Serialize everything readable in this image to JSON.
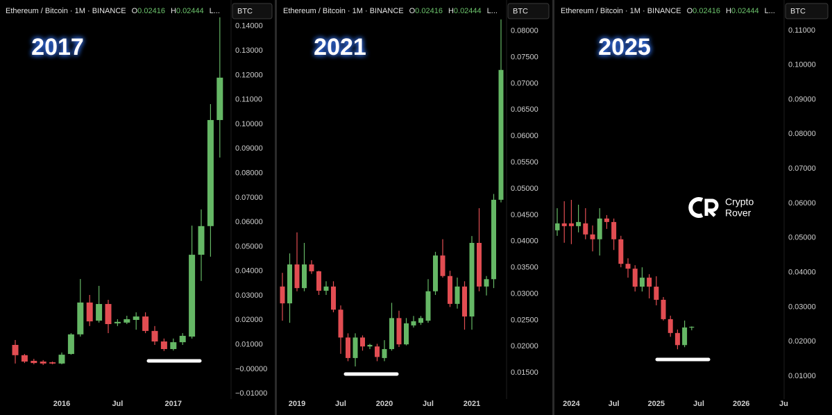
{
  "chart_data": [
    {
      "type": "candlestick",
      "title": "2017",
      "header": {
        "symbol": "Ethereum / Bitcoin · 1M · BINANCE",
        "o_label": "O",
        "open": 0.02416,
        "h_label": "H",
        "high": 0.02444,
        "more": "L..."
      },
      "currency": "BTC",
      "up_color": "#65b765",
      "down_color": "#e24d52",
      "categories": [
        null,
        null,
        null,
        null,
        null,
        "2016",
        null,
        null,
        null,
        null,
        null,
        "Jul",
        null,
        null,
        null,
        null,
        null,
        "2017",
        null,
        null,
        null,
        null,
        null
      ],
      "open": [
        0.0099,
        0.0057,
        0.0034,
        0.0031,
        0.0028,
        0.0023,
        0.0062,
        0.0142,
        0.0272,
        0.0198,
        0.0266,
        0.0187,
        0.019,
        0.0201,
        0.0215,
        0.0156,
        0.0113,
        0.0082,
        0.011,
        0.0133,
        0.0467,
        0.0584,
        0.1017
      ],
      "high": [
        0.0119,
        0.0062,
        0.0042,
        0.0037,
        0.0031,
        0.0068,
        0.0147,
        0.0368,
        0.0303,
        0.034,
        0.0283,
        0.0204,
        0.0218,
        0.0232,
        0.0232,
        0.0176,
        0.0125,
        0.0125,
        0.0147,
        0.0586,
        0.0652,
        0.1082,
        0.1436
      ],
      "low": [
        0.0023,
        0.0025,
        0.002,
        0.0017,
        0.002,
        0.002,
        0.0059,
        0.0133,
        0.0176,
        0.019,
        0.0147,
        0.0176,
        0.0184,
        0.0161,
        0.0147,
        0.0099,
        0.0074,
        0.0076,
        0.0099,
        0.0125,
        0.036,
        0.0459,
        0.0864
      ],
      "close": [
        0.0057,
        0.0031,
        0.0025,
        0.0023,
        0.0023,
        0.0059,
        0.0142,
        0.0272,
        0.0195,
        0.0266,
        0.0184,
        0.0193,
        0.0204,
        0.0215,
        0.0156,
        0.0113,
        0.0082,
        0.011,
        0.0136,
        0.0467,
        0.0584,
        0.1017,
        0.119
      ],
      "ylim": [
        -0.0122,
        0.1507
      ],
      "yticks": [
        {
          "value": 0.14,
          "label": "0.14000"
        },
        {
          "value": 0.13,
          "label": "0.13000"
        },
        {
          "value": 0.12,
          "label": "0.12000"
        },
        {
          "value": 0.11,
          "label": "0.11000"
        },
        {
          "value": 0.1,
          "label": "0.10000"
        },
        {
          "value": 0.09,
          "label": "0.09000"
        },
        {
          "value": 0.08,
          "label": "0.08000"
        },
        {
          "value": 0.07,
          "label": "0.07000"
        },
        {
          "value": 0.06,
          "label": "0.06000"
        },
        {
          "value": 0.05,
          "label": "0.05000"
        },
        {
          "value": 0.04,
          "label": "0.04000"
        },
        {
          "value": 0.03,
          "label": "0.03000"
        },
        {
          "value": 0.02,
          "label": "0.02000"
        },
        {
          "value": 0.01,
          "label": "0.01000"
        },
        {
          "value": 0,
          "label": "−0.00000"
        },
        {
          "value": -0.01,
          "label": "−0.01000"
        }
      ]
    },
    {
      "type": "candlestick",
      "title": "2021",
      "header": {
        "symbol": "Ethereum / Bitcoin · 1M · BINANCE",
        "o_label": "O",
        "open": 0.02416,
        "h_label": "H",
        "high": 0.02444,
        "more": "L..."
      },
      "currency": "BTC",
      "up_color": "#65b765",
      "down_color": "#e24d52",
      "categories": [
        null,
        null,
        "2019",
        null,
        null,
        null,
        null,
        null,
        "Jul",
        null,
        null,
        null,
        null,
        null,
        "2020",
        null,
        null,
        null,
        null,
        null,
        "Jul",
        null,
        null,
        null,
        null,
        null,
        "2021",
        null,
        null,
        null,
        null
      ],
      "open": [
        0.0314,
        0.0282,
        0.0356,
        0.0311,
        0.0356,
        0.0343,
        0.0306,
        0.0314,
        0.027,
        0.0217,
        0.0178,
        0.0217,
        0.02,
        0.02,
        0.0178,
        0.0195,
        0.0254,
        0.0204,
        0.024,
        0.0245,
        0.0249,
        0.0305,
        0.0373,
        0.0334,
        0.0281,
        0.0314,
        0.0257,
        0.0397,
        0.0314,
        0.0328,
        0.0479
      ],
      "high": [
        0.034,
        0.0377,
        0.0417,
        0.0397,
        0.0364,
        0.0344,
        0.0324,
        0.0324,
        0.0278,
        0.0225,
        0.0225,
        0.0221,
        0.0205,
        0.0205,
        0.0212,
        0.0283,
        0.0268,
        0.0254,
        0.0258,
        0.0258,
        0.0328,
        0.038,
        0.0404,
        0.0344,
        0.0331,
        0.0324,
        0.041,
        0.0463,
        0.0334,
        0.049,
        0.0822
      ],
      "low": [
        0.0249,
        0.0245,
        0.0305,
        0.0305,
        0.0338,
        0.0298,
        0.0298,
        0.0265,
        0.0186,
        0.0172,
        0.0162,
        0.0192,
        0.0195,
        0.0172,
        0.0172,
        0.0192,
        0.0199,
        0.0202,
        0.0236,
        0.0241,
        0.0245,
        0.0298,
        0.0331,
        0.0275,
        0.0272,
        0.0232,
        0.0232,
        0.0305,
        0.0297,
        0.0311,
        0.0474
      ],
      "close": [
        0.0282,
        0.0356,
        0.0311,
        0.0356,
        0.0343,
        0.0306,
        0.0314,
        0.027,
        0.0217,
        0.0178,
        0.0217,
        0.02,
        0.0203,
        0.018,
        0.0195,
        0.0254,
        0.0204,
        0.0244,
        0.0248,
        0.0254,
        0.0305,
        0.0373,
        0.0334,
        0.0281,
        0.0314,
        0.0257,
        0.0397,
        0.0314,
        0.0328,
        0.0479,
        0.0726
      ],
      "ylim": [
        0.01,
        0.0859
      ],
      "yticks": [
        {
          "value": 0.08,
          "label": "0.08000"
        },
        {
          "value": 0.075,
          "label": "0.07500"
        },
        {
          "value": 0.07,
          "label": "0.07000"
        },
        {
          "value": 0.065,
          "label": "0.06500"
        },
        {
          "value": 0.06,
          "label": "0.06000"
        },
        {
          "value": 0.055,
          "label": "0.05500"
        },
        {
          "value": 0.05,
          "label": "0.05000"
        },
        {
          "value": 0.045,
          "label": "0.04500"
        },
        {
          "value": 0.04,
          "label": "0.04000"
        },
        {
          "value": 0.035,
          "label": "0.03500"
        },
        {
          "value": 0.03,
          "label": "0.03000"
        },
        {
          "value": 0.025,
          "label": "0.02500"
        },
        {
          "value": 0.02,
          "label": "0.02000"
        },
        {
          "value": 0.015,
          "label": "0.01500"
        }
      ]
    },
    {
      "type": "candlestick",
      "title": "2025",
      "header": {
        "symbol": "Ethereum / Bitcoin · 1M · BINANCE",
        "o_label": "O",
        "open": 0.02416,
        "h_label": "H",
        "high": 0.02444,
        "more": "L..."
      },
      "currency": "BTC",
      "up_color": "#65b765",
      "down_color": "#e24d52",
      "categories": [
        null,
        null,
        "2024",
        null,
        null,
        null,
        null,
        null,
        "Jul",
        null,
        null,
        null,
        null,
        null,
        "2025",
        null,
        null,
        null,
        null,
        null,
        "Jul",
        null,
        null,
        null,
        null,
        null,
        "2026",
        null,
        null,
        null,
        null,
        null,
        "Ju"
      ],
      "open": [
        0.0522,
        0.0542,
        0.0542,
        0.0534,
        0.0542,
        0.051,
        0.0496,
        0.0556,
        0.0546,
        0.0496,
        0.0425,
        0.0411,
        0.0359,
        0.0385,
        0.0359,
        0.0321,
        0.0265,
        0.0225,
        0.019,
        0.0242,
        null,
        null,
        null,
        null,
        null,
        null,
        null,
        null,
        null,
        null,
        null,
        null,
        null
      ],
      "high": [
        0.0586,
        0.0606,
        0.061,
        0.0596,
        0.0586,
        0.0536,
        0.0586,
        0.0566,
        0.0556,
        0.0506,
        0.0441,
        0.0421,
        0.0415,
        0.0395,
        0.0389,
        0.0329,
        0.0275,
        0.0235,
        0.0261,
        0.0244,
        null,
        null,
        null,
        null,
        null,
        null,
        null,
        null,
        null,
        null,
        null,
        null,
        null
      ],
      "low": [
        0.0506,
        0.0486,
        0.0482,
        0.0516,
        0.0496,
        0.0461,
        0.0449,
        0.0526,
        0.0465,
        0.0415,
        0.0385,
        0.0345,
        0.0345,
        0.0325,
        0.0305,
        0.0261,
        0.0214,
        0.0178,
        0.0184,
        0.0233,
        null,
        null,
        null,
        null,
        null,
        null,
        null,
        null,
        null,
        null,
        null,
        null,
        null
      ],
      "close": [
        0.0542,
        0.0534,
        0.0534,
        0.0546,
        0.051,
        0.0496,
        0.0556,
        0.0546,
        0.0496,
        0.0425,
        0.0411,
        0.0359,
        0.0385,
        0.0359,
        0.0321,
        0.0265,
        0.0225,
        0.019,
        0.0241,
        0.0243,
        null,
        null,
        null,
        null,
        null,
        null,
        null,
        null,
        null,
        null,
        null,
        null,
        null
      ],
      "ylim": [
        0.0034,
        0.1188
      ],
      "yticks": [
        {
          "value": 0.11,
          "label": "0.11000"
        },
        {
          "value": 0.1,
          "label": "0.10000"
        },
        {
          "value": 0.09,
          "label": "0.09000"
        },
        {
          "value": 0.08,
          "label": "0.08000"
        },
        {
          "value": 0.07,
          "label": "0.07000"
        },
        {
          "value": 0.06,
          "label": "0.06000"
        },
        {
          "value": 0.05,
          "label": "0.05000"
        },
        {
          "value": 0.04,
          "label": "0.04000"
        },
        {
          "value": 0.03,
          "label": "0.03000"
        },
        {
          "value": 0.02,
          "label": "0.02000"
        },
        {
          "value": 0.01,
          "label": "0.01000"
        }
      ]
    }
  ],
  "watermark": {
    "line1": "Crypto",
    "line2": "Rover"
  }
}
